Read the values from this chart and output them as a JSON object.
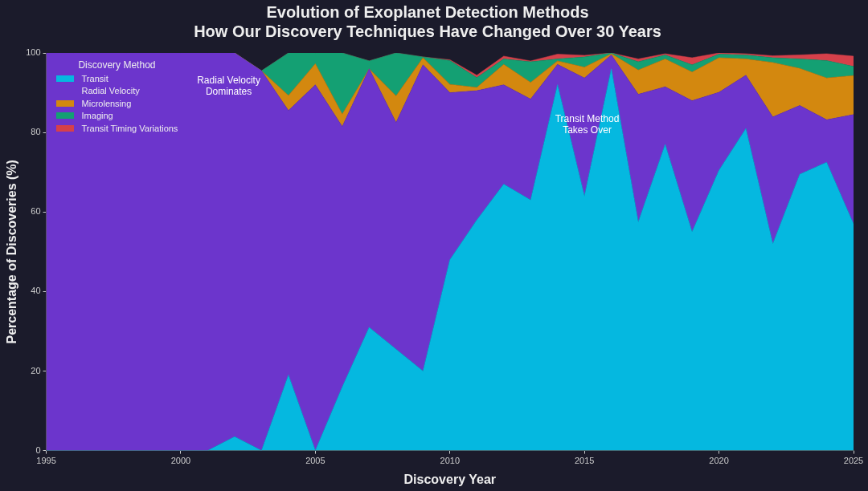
{
  "chart_data": {
    "type": "area",
    "title": "Evolution of Exoplanet Detection Methods",
    "subtitle": "How Our Discovery Techniques Have Changed Over 30 Years",
    "xlabel": "Discovery Year",
    "ylabel": "Percentage of Discoveries (%)",
    "legend_title": "Discovery Method",
    "stacked": true,
    "legend": "top left",
    "grid": false,
    "marker": "none",
    "x": [
      1995,
      1996,
      1997,
      1998,
      1999,
      2000,
      2001,
      2002,
      2003,
      2004,
      2005,
      2006,
      2007,
      2008,
      2009,
      2010,
      2011,
      2012,
      2013,
      2014,
      2015,
      2016,
      2017,
      2018,
      2019,
      2020,
      2021,
      2022,
      2023,
      2024,
      2025
    ],
    "xlim": [
      1995,
      2025
    ],
    "xticks": [
      1995,
      2000,
      2005,
      2010,
      2015,
      2020,
      2025
    ],
    "ylim": [
      0,
      100
    ],
    "yticks": [
      0,
      20,
      40,
      60,
      80,
      100
    ],
    "series": [
      {
        "name": "Transit",
        "color": "#05b8e0",
        "values": [
          0,
          0,
          0,
          0,
          0,
          0,
          0,
          3.5,
          0,
          19,
          0,
          16,
          31,
          25.5,
          20,
          48,
          58,
          67,
          63,
          92,
          64,
          96,
          57.5,
          77,
          55,
          70.5,
          81,
          52,
          69.5,
          72.5,
          57
        ]
      },
      {
        "name": "Radial Velocity",
        "color": "#6c35cc",
        "values": [
          100,
          100,
          100,
          100,
          100,
          100,
          100,
          96.5,
          95.5,
          66.5,
          92,
          65.5,
          65,
          57,
          77,
          42,
          32.5,
          25,
          25.4,
          5.1,
          29.7,
          3.5,
          32.1,
          14.5,
          33,
          19.6,
          13.4,
          31.9,
          17.3,
          10.7,
          27.5
        ]
      },
      {
        "name": "Microlensing",
        "color": "#d3880f",
        "values": [
          0,
          0,
          0,
          0,
          0,
          0,
          0,
          0,
          0,
          3.8,
          5.3,
          3.1,
          0,
          6.7,
          1.8,
          2.1,
          0.8,
          5.1,
          4.2,
          0.9,
          2.7,
          0.3,
          6.1,
          7,
          7.2,
          8.7,
          4.1,
          13.7,
          9.3,
          10.5,
          9.8
        ]
      },
      {
        "name": "Imaging",
        "color": "#14a073",
        "values": [
          0,
          0,
          0,
          0,
          0,
          0,
          0,
          0,
          0,
          10.7,
          2.7,
          15.4,
          2,
          10.8,
          0.2,
          6,
          2.5,
          1.4,
          5.2,
          0.5,
          2.6,
          0.2,
          2.1,
          1,
          1.8,
          0.9,
          1,
          1.2,
          2.4,
          4.4,
          2.3
        ]
      },
      {
        "name": "Transit Timing Variations",
        "color": "#d6404a",
        "values": [
          0,
          0,
          0,
          0,
          0,
          0,
          0,
          0,
          0,
          0,
          0,
          0,
          0,
          0,
          0,
          0.2,
          0.6,
          0.7,
          0.2,
          1.2,
          0.4,
          0,
          0.7,
          0.3,
          1.8,
          0.3,
          0.3,
          0.5,
          1,
          1.7,
          2.6
        ]
      }
    ],
    "annotations": [
      "Radial Velocity\nDominates",
      "Transit Method\nTakes Over"
    ]
  }
}
